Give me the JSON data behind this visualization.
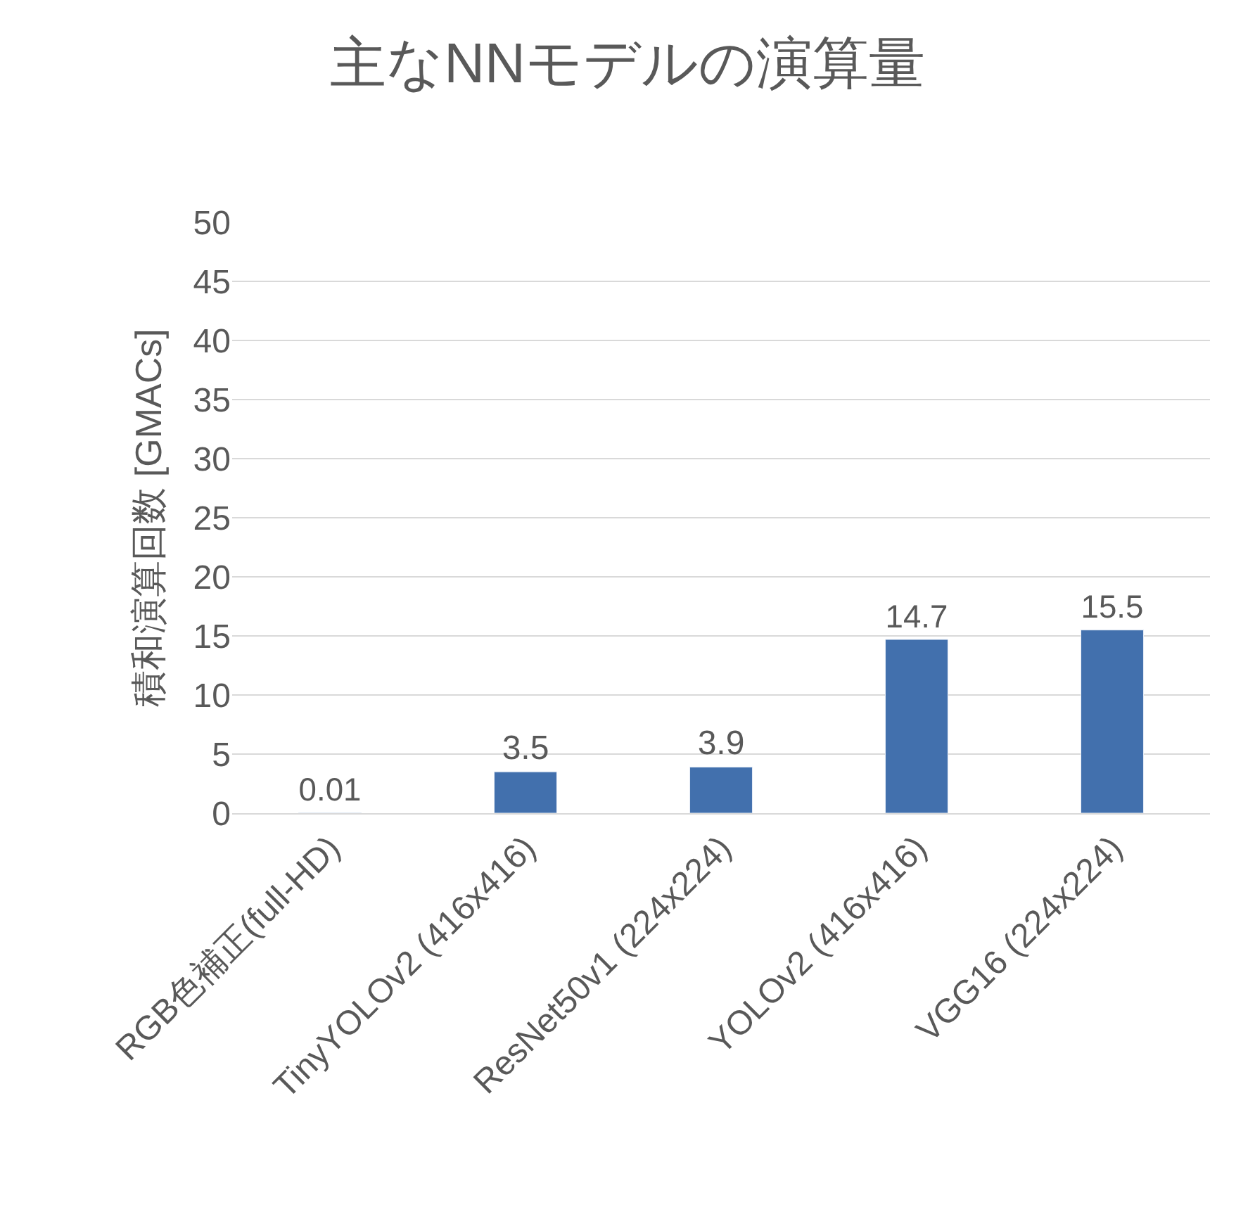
{
  "chart_data": {
    "type": "bar",
    "title": "主なNNモデルの演算量",
    "ylabel": "積和演算回数 [GMACs]",
    "categories": [
      "RGB色補正(full-HD)",
      "TinyYOLOv2 (416x416)",
      "ResNet50v1 (224x224)",
      "YOLOv2 (416x416)",
      "VGG16 (224x224)"
    ],
    "values": [
      0.01,
      3.5,
      3.9,
      14.7,
      15.5
    ],
    "color": "#4270ad",
    "ylim": [
      0,
      50
    ],
    "yticks": [
      0,
      5,
      10,
      15,
      20,
      25,
      30,
      35,
      40,
      45,
      50
    ],
    "grid": "y",
    "data_labels": true,
    "legend": false
  }
}
